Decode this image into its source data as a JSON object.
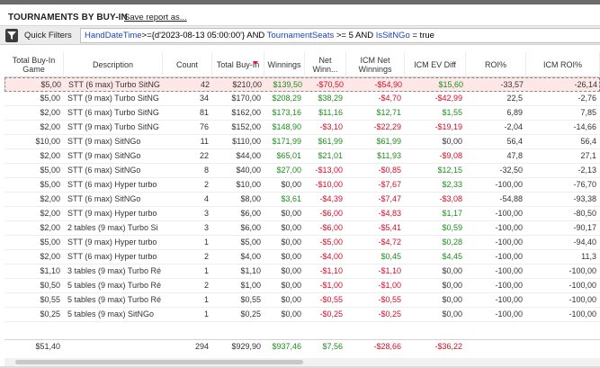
{
  "header": {
    "title": "TOURNAMENTS BY BUY-IN",
    "save_label": "Save report as..."
  },
  "filter": {
    "button_label": "Quick Filters",
    "parts": [
      {
        "t": "HandDateTime",
        "kw": true
      },
      {
        "t": ">={d'2023-08-13 05:00:00'} AND ",
        "kw": false
      },
      {
        "t": "TournamentSeats",
        "kw": true
      },
      {
        "t": " >= 5 AND ",
        "kw": false
      },
      {
        "t": "IsSitNGo",
        "kw": true
      },
      {
        "t": " = true",
        "kw": false
      }
    ]
  },
  "columns": [
    {
      "key": "buyin",
      "label": "Total Buy-In Game",
      "align": "r"
    },
    {
      "key": "desc",
      "label": "Description",
      "align": "l"
    },
    {
      "key": "count",
      "label": "Count",
      "align": "r"
    },
    {
      "key": "total",
      "label": "Total Buy-In",
      "align": "r",
      "sorted": true
    },
    {
      "key": "win",
      "label": "Winnings",
      "align": "r"
    },
    {
      "key": "net",
      "label": "Net Winn...",
      "align": "r"
    },
    {
      "key": "icmnet",
      "label": "ICM Net Winnings",
      "align": "r"
    },
    {
      "key": "icmev",
      "label": "ICM EV Diff",
      "align": "r"
    },
    {
      "key": "roi",
      "label": "ROI%",
      "align": "r"
    },
    {
      "key": "icmroi",
      "label": "ICM ROI%",
      "align": "r"
    }
  ],
  "rows": [
    [
      "$5,00",
      "STT (6 max) Turbo SitNG",
      "42",
      "$210,00",
      "$139,50",
      "-$70,50",
      "-$54,90",
      "$15,60",
      "-33,57",
      "-26,14"
    ],
    [
      "$5,00",
      "STT (9 max) Turbo SitNG",
      "34",
      "$170,00",
      "$208,29",
      "$38,29",
      "-$4,70",
      "-$42,99",
      "22,5",
      "-2,76"
    ],
    [
      "$2,00",
      "STT (6 max) Turbo SitNG",
      "81",
      "$162,00",
      "$173,16",
      "$11,16",
      "$12,71",
      "$1,55",
      "6,89",
      "7,85"
    ],
    [
      "$2,00",
      "STT (9 max) Turbo SitNG",
      "76",
      "$152,00",
      "$148,90",
      "-$3,10",
      "-$22,29",
      "-$19,19",
      "-2,04",
      "-14,66"
    ],
    [
      "$10,00",
      "STT (9 max) SitNGo",
      "11",
      "$110,00",
      "$171,99",
      "$61,99",
      "$61,99",
      "$0,00",
      "56,4",
      "56,4"
    ],
    [
      "$2,00",
      "STT (9 max) SitNGo",
      "22",
      "$44,00",
      "$65,01",
      "$21,01",
      "$11,93",
      "-$9,08",
      "47,8",
      "27,1"
    ],
    [
      "$5,00",
      "STT (6 max) SitNGo",
      "8",
      "$40,00",
      "$27,00",
      "-$13,00",
      "-$0,85",
      "$12,15",
      "-32,50",
      "-2,13"
    ],
    [
      "$5,00",
      "STT (6 max) Hyper turbo",
      "2",
      "$10,00",
      "$0,00",
      "-$10,00",
      "-$7,67",
      "$2,33",
      "-100,00",
      "-76,70"
    ],
    [
      "$2,00",
      "STT (6 max) SitNGo",
      "4",
      "$8,00",
      "$3,61",
      "-$4,39",
      "-$7,47",
      "-$3,08",
      "-54,88",
      "-93,38"
    ],
    [
      "$2,00",
      "STT (9 max) Hyper turbo",
      "3",
      "$6,00",
      "$0,00",
      "-$6,00",
      "-$4,83",
      "$1,17",
      "-100,00",
      "-80,50"
    ],
    [
      "$2,00",
      "2 tables (9 max) Turbo Si",
      "3",
      "$6,00",
      "$0,00",
      "-$6,00",
      "-$5,41",
      "$0,59",
      "-100,00",
      "-90,17"
    ],
    [
      "$5,00",
      "STT (9 max) Hyper turbo",
      "1",
      "$5,00",
      "$0,00",
      "-$5,00",
      "-$4,72",
      "$0,28",
      "-100,00",
      "-94,40"
    ],
    [
      "$2,00",
      "STT (6 max) Hyper turbo",
      "2",
      "$4,00",
      "$0,00",
      "-$4,00",
      "$0,45",
      "$4,45",
      "-100,00",
      "11,3"
    ],
    [
      "$1,10",
      "3 tables (9 max) Turbo Ré",
      "1",
      "$1,10",
      "$0,00",
      "-$1,10",
      "-$1,10",
      "$0,00",
      "-100,00",
      "-100,00"
    ],
    [
      "$0,50",
      "5 tables (9 max) Turbo Ré",
      "2",
      "$1,00",
      "$0,00",
      "-$1,00",
      "-$1,00",
      "$0,00",
      "-100,00",
      "-100,00"
    ],
    [
      "$0,55",
      "5 tables (9 max) Turbo Ré",
      "1",
      "$0,55",
      "$0,00",
      "-$0,55",
      "-$0,55",
      "$0,00",
      "-100,00",
      "-100,00"
    ],
    [
      "$0,25",
      "5 tables (9 max) SitNGo",
      "1",
      "$0,25",
      "$0,00",
      "-$0,25",
      "-$0,25",
      "$0,00",
      "-100,00",
      "-100,00"
    ]
  ],
  "totals": [
    "$51,40",
    "",
    "294",
    "$929,90",
    "$937,46",
    "$7,56",
    "-$28,66",
    "-$36,22",
    "",
    ""
  ],
  "colors": {
    "positive": "#1e8e1e",
    "negative": "#d0102a",
    "selected_row": "#fde7e7",
    "keyword": "#1a46b8"
  }
}
